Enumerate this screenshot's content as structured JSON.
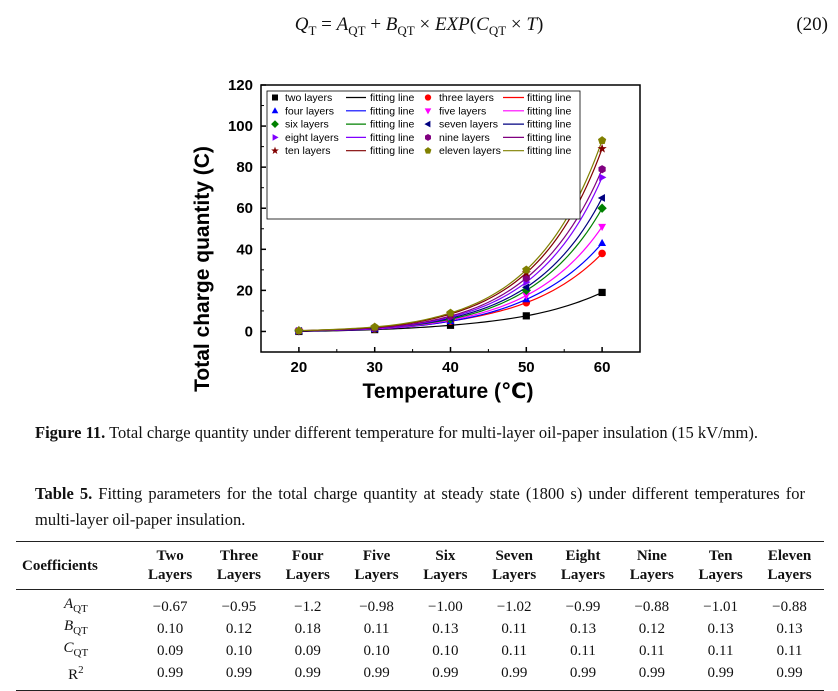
{
  "equation": {
    "lhs_symbol": "Q",
    "lhs_sub": "T",
    "a_symbol": "A",
    "a_sub": "QT",
    "b_symbol": "B",
    "b_sub": "QT",
    "exp_fn": "EXP",
    "c_symbol": "C",
    "c_sub": "QT",
    "var": "T",
    "number": "(20)"
  },
  "chart_data": {
    "type": "scatter",
    "title": "",
    "xlabel": "Temperature (℃)",
    "ylabel": "Total charge quantity (C)",
    "xlim": [
      15,
      65
    ],
    "ylim": [
      -10,
      120
    ],
    "xticks": [
      20,
      30,
      40,
      50,
      60
    ],
    "yticks": [
      0,
      20,
      40,
      60,
      80,
      100,
      120
    ],
    "x": [
      20,
      30,
      40,
      50,
      60
    ],
    "fit_label": "fitting line",
    "series": [
      {
        "name": "two layers",
        "color": "#000000",
        "marker": "square",
        "values": [
          0,
          0.9,
          3,
          7.6,
          19
        ]
      },
      {
        "name": "three layers",
        "color": "#ff0000",
        "marker": "circle",
        "values": [
          0.3,
          1.2,
          5,
          14,
          38
        ]
      },
      {
        "name": "four layers",
        "color": "#0000ff",
        "marker": "triangle-up",
        "values": [
          0.2,
          1.2,
          5,
          15.6,
          43
        ]
      },
      {
        "name": "five layers",
        "color": "#ff00ff",
        "marker": "triangle-down",
        "values": [
          0.3,
          1.3,
          5.5,
          17.5,
          51
        ]
      },
      {
        "name": "six layers",
        "color": "#008000",
        "marker": "diamond",
        "values": [
          0.3,
          1.5,
          6,
          20,
          60
        ]
      },
      {
        "name": "seven layers",
        "color": "#000080",
        "marker": "triangle-left",
        "values": [
          0.3,
          1.5,
          6.5,
          21.5,
          65
        ]
      },
      {
        "name": "eight layers",
        "color": "#8000ff",
        "marker": "triangle-right",
        "values": [
          0.3,
          1.5,
          7,
          24,
          75
        ]
      },
      {
        "name": "nine layers",
        "color": "#800080",
        "marker": "hexagon",
        "values": [
          0.3,
          1.7,
          7.5,
          26,
          79
        ]
      },
      {
        "name": "ten layers",
        "color": "#800000",
        "marker": "star",
        "values": [
          0.4,
          2,
          8.5,
          28.5,
          89
        ]
      },
      {
        "name": "eleven layers",
        "color": "#808000",
        "marker": "pentagon",
        "values": [
          0.4,
          2.2,
          9,
          30,
          93
        ]
      }
    ]
  },
  "figure_caption": {
    "label": "Figure 11.",
    "text": "Total charge quantity under different temperature for multi-layer oil-paper insulation (15 kV/mm)."
  },
  "table_caption": {
    "label": "Table 5.",
    "text": "Fitting parameters for the total charge quantity at steady state (1800 s) under different temperatures for multi-layer oil-paper insulation."
  },
  "table": {
    "corner": "Coefficients",
    "columns": [
      [
        "Two",
        "Layers"
      ],
      [
        "Three",
        "Layers"
      ],
      [
        "Four",
        "Layers"
      ],
      [
        "Five",
        "Layers"
      ],
      [
        "Six",
        "Layers"
      ],
      [
        "Seven",
        "Layers"
      ],
      [
        "Eight",
        "Layers"
      ],
      [
        "Nine",
        "Layers"
      ],
      [
        "Ten",
        "Layers"
      ],
      [
        "Eleven",
        "Layers"
      ]
    ],
    "rows": [
      {
        "symbol": "A",
        "sub": "QT",
        "sup": "",
        "italic": true,
        "values": [
          "−0.67",
          "−0.95",
          "−1.2",
          "−0.98",
          "−1.00",
          "−1.02",
          "−0.99",
          "−0.88",
          "−1.01",
          "−0.88"
        ]
      },
      {
        "symbol": "B",
        "sub": "QT",
        "sup": "",
        "italic": true,
        "values": [
          "0.10",
          "0.12",
          "0.18",
          "0.11",
          "0.13",
          "0.11",
          "0.13",
          "0.12",
          "0.13",
          "0.13"
        ]
      },
      {
        "symbol": "C",
        "sub": "QT",
        "sup": "",
        "italic": true,
        "values": [
          "0.09",
          "0.10",
          "0.09",
          "0.10",
          "0.10",
          "0.11",
          "0.11",
          "0.11",
          "0.11",
          "0.11"
        ]
      },
      {
        "symbol": "R",
        "sub": "",
        "sup": "2",
        "italic": false,
        "values": [
          "0.99",
          "0.99",
          "0.99",
          "0.99",
          "0.99",
          "0.99",
          "0.99",
          "0.99",
          "0.99",
          "0.99"
        ]
      }
    ]
  }
}
